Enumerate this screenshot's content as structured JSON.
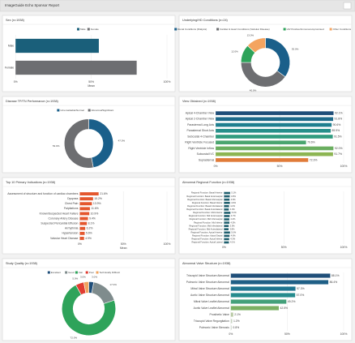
{
  "header": {
    "title": "ImageGuide Echo Sponsor Report"
  },
  "chart_data": [
    {
      "type": "bar",
      "orientation": "horizontal",
      "title": "Sex (n=1938)",
      "categories": [
        "Male",
        "Female"
      ],
      "values": [
        55,
        80
      ],
      "colors": [
        "#1a5f7a",
        "#6d6e71"
      ],
      "legend": true,
      "xlim": [
        0,
        100
      ],
      "xticks": [
        {
          "value": 0,
          "label": "0%"
        },
        {
          "value": 50,
          "label": "50%"
        },
        {
          "value": 100,
          "label": "100%"
        }
      ],
      "xlabel": "Mean",
      "grid": true
    },
    {
      "type": "pie",
      "donut": true,
      "title": "Underlying/HD Conditions (n=24)",
      "categories": [
        "Renal Conditions (Dialysis)",
        "Cardiac & Heart Conditions (Valvular Disease)",
        "HIV Positive/Immunocompromised",
        "Other Conditions"
      ],
      "values": [
        35,
        40,
        12,
        13
      ],
      "value_labels": [
        "35.0%",
        "40.0%",
        "12.0%",
        "13.0%"
      ],
      "colors": [
        "#1a5f8a",
        "#6d6e71",
        "#2ea35a",
        "#f4a460"
      ],
      "legend": true
    },
    {
      "type": "pie",
      "donut": true,
      "title": "Disease TP/TN Performance (n=1938)",
      "categories": [
        "Unremarkable/Normal",
        "Abnormal/Significant"
      ],
      "values": [
        47,
        53
      ],
      "value_labels": [
        "47.0%",
        "53.0%"
      ],
      "colors": [
        "#1a5f8a",
        "#6d6e71"
      ],
      "legend": true
    },
    {
      "type": "bar",
      "orientation": "horizontal",
      "title": "View Obtained (n=1938)",
      "categories": [
        "Apical 4-Chamber View",
        "Apical 2-Chamber View",
        "Parasternal Long Axis",
        "Parasternal Short Axis",
        "Subcostal 4-Chamber",
        "Right Ventricle Focused",
        "Right Ventricle Inflow",
        "Subcostal IVC",
        "Suprasternal"
      ],
      "values": [
        92.1,
        91.8,
        90.6,
        89.9,
        91.5,
        70.6,
        92.0,
        91.7,
        72.3
      ],
      "value_labels": [
        "92.1%",
        "91.8%",
        "90.6%",
        "89.9%",
        "91.5%",
        "70.6%",
        "92.0%",
        "91.7%",
        "72.3%"
      ],
      "colors": [
        "#1f4e79",
        "#1d6a8a",
        "#1f7f8f",
        "#258f8a",
        "#2f9b7f",
        "#4aa56f",
        "#6aae5f",
        "#8cb552",
        "#e07b39"
      ],
      "xlim": [
        0,
        100
      ],
      "xticks": [
        {
          "value": 0,
          "label": "0%"
        },
        {
          "value": 50,
          "label": "50%"
        },
        {
          "value": 100,
          "label": "100%"
        }
      ],
      "grid": true
    },
    {
      "type": "bar",
      "orientation": "horizontal",
      "title": "Top 10 Primary Indications (n=1938)",
      "categories": [
        "Assessment of structure and function of cardiac chambers",
        "Dyspnea",
        "Chest Pain",
        "Palpitations",
        "Known/Suspected Heart Failure",
        "Coronary Artery Disease",
        "Suspected Pericardial Effusion",
        "Arrhythmia",
        "Hypertension",
        "Valvular Heart Disease"
      ],
      "values": [
        21.6,
        15.2,
        13.9,
        11.6,
        10.9,
        9.4,
        8.1,
        6.2,
        5.6,
        4.9
      ],
      "value_labels": [
        "21.6%",
        "15.2%",
        "13.9%",
        "11.6%",
        "10.9%",
        "9.4%",
        "8.1%",
        "6.2%",
        "5.6%",
        "4.9%"
      ],
      "color": "#e4572e",
      "xlim": [
        0,
        100
      ],
      "xticks": [
        {
          "value": 0,
          "label": "0%"
        },
        {
          "value": 50,
          "label": "50%"
        },
        {
          "value": 100,
          "label": "100%"
        }
      ],
      "xlabel": "Mean",
      "grid": true
    },
    {
      "type": "bar",
      "orientation": "horizontal",
      "title": "Abnormal Regional Function (n=1938)",
      "categories": [
        "Regional Function: Basal Anterior",
        "Regional Function: Basal Anteroseptal",
        "Regional Function: Basal Inferoseptal",
        "Regional Function: Basal Inferior",
        "Regional Function: Basal Inferolateral",
        "Regional Function: Basal Anterolateral",
        "Regional Function: Mid Anterior",
        "Regional Function: Mid Anteroseptal",
        "Regional Function: Mid Inferoseptal",
        "Regional Function: Mid Inferior",
        "Regional Function: Mid Inferolateral",
        "Regional Function: Mid Anterolateral",
        "Regional Function: Apical Anterior",
        "Regional Function: Apical Septal",
        "Regional Function: Apical Inferior",
        "Regional Function: Apical Lateral"
      ],
      "values": [
        5.1,
        4.8,
        4.6,
        4.9,
        4.2,
        4.0,
        5.3,
        4.7,
        4.4,
        4.5,
        3.9,
        3.8,
        5.0,
        4.6,
        4.3,
        4.1
      ],
      "value_labels": [
        "5.1%",
        "4.8%",
        "4.6%",
        "4.9%",
        "4.2%",
        "4.0%",
        "5.3%",
        "4.7%",
        "4.4%",
        "4.5%",
        "3.9%",
        "3.8%",
        "5.0%",
        "4.6%",
        "4.3%",
        "4.1%"
      ],
      "color": "#1f5f6e",
      "xlim": [
        0,
        100
      ],
      "xticks": [
        {
          "value": 0,
          "label": "0%"
        },
        {
          "value": 50,
          "label": "50%"
        },
        {
          "value": 100,
          "label": "100%"
        }
      ],
      "grid": true
    },
    {
      "type": "pie",
      "donut": true,
      "title": "Study Quality (n=1938)",
      "categories": [
        "Excellent",
        "Good",
        "Fair",
        "Poor",
        "Technically Difficult"
      ],
      "values": [
        3,
        17,
        72,
        5,
        3
      ],
      "value_labels": [
        "3.0%",
        "17.0%",
        "72.0%",
        "5.0%",
        "3.0%"
      ],
      "colors": [
        "#1f4e79",
        "#7f8c8d",
        "#2ea35a",
        "#e03c31",
        "#f0a35e"
      ],
      "legend": true
    },
    {
      "type": "bar",
      "orientation": "horizontal",
      "title": "Abnormal Valve Structure (n=1938)",
      "categories": [
        "Tricuspid Valve Structure Abnormal",
        "Pulmonic Valve Structure Abnormal",
        "Mitral Valve Structure Abnormal",
        "Aortic Valve Structure Abnormal",
        "Mitral Valve Leaflet Abnormal",
        "Aortic Valve Leaflet Abnormal",
        "Prosthetic Valve",
        "Tricuspid Valve Regurgitation",
        "Pulmonic Valve Stenosis"
      ],
      "values": [
        88.1,
        86.4,
        57.3,
        57.0,
        49.2,
        42.5,
        2.1,
        1.2,
        0.8
      ],
      "value_labels": [
        "88.1%",
        "86.4%",
        "57.3%",
        "57.0%",
        "49.2%",
        "42.5%",
        "2.1%",
        "1.2%",
        "0.8%"
      ],
      "colors": [
        "#1f4e79",
        "#1f5f86",
        "#1f7590",
        "#258b8d",
        "#43a07a",
        "#7bb063",
        "#b8c9a4",
        "#c7d3c0",
        "#d3dbd0"
      ],
      "xlim": [
        0,
        100
      ],
      "xticks": [
        {
          "value": 0,
          "label": "0%"
        },
        {
          "value": 50,
          "label": "50%"
        },
        {
          "value": 100,
          "label": "100%"
        }
      ],
      "grid": true
    }
  ]
}
